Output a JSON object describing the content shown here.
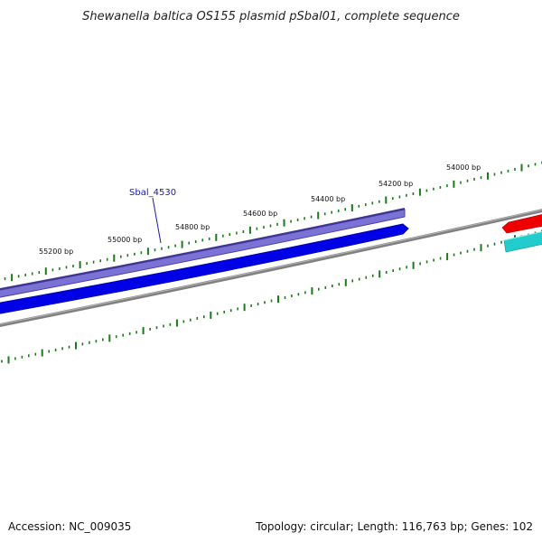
{
  "title": "Shewanella baltica OS155 plasmid pSbal01, complete sequence",
  "footer": {
    "accession": "Accession: NC_009035",
    "summary": "Topology: circular; Length: 116,763 bp; Genes: 102"
  },
  "scale_labels": {
    "l55200": "55200 bp",
    "l55000": "55000 bp",
    "l54800": "54800 bp",
    "l54600": "54600 bp",
    "l54400": "54400 bp",
    "l54200": "54200 bp",
    "l54000": "54000 bp"
  },
  "gene": {
    "label": "Sbal_4530",
    "label_color": "#1a1aa8"
  },
  "colors": {
    "backbone": "#808080",
    "tick": "#1a7a1a",
    "cds_light": "#7b72d6",
    "cds_dark": "#0000e6",
    "feature_red": "#ee0000",
    "feature_cyan": "#22cccc"
  }
}
